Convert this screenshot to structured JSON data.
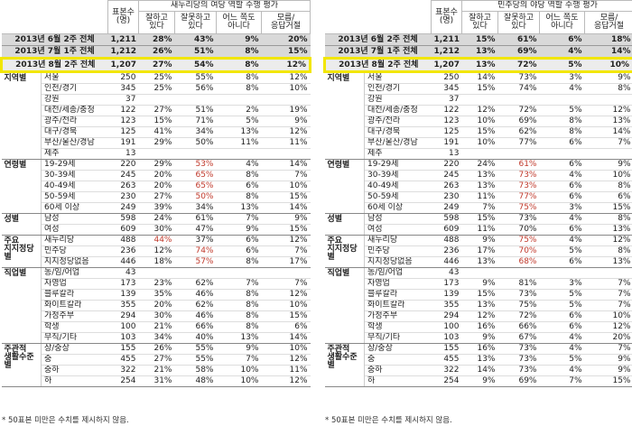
{
  "tables": [
    {
      "title": "새누리당의 여당 역할 수행 평가",
      "columns": [
        "표본수\n(명)",
        "잘하고\n있다",
        "잘못하고\n있다",
        "어느 쪽도\n아니다",
        "모름/\n응답거절"
      ],
      "summary": [
        {
          "label": "2013년 6월 2주 전체",
          "values": [
            "1,211",
            "28%",
            "43%",
            "9%",
            "20%"
          ]
        },
        {
          "label": "2013년 7월 1주 전체",
          "values": [
            "1,212",
            "26%",
            "51%",
            "8%",
            "15%"
          ]
        },
        {
          "label": "2013년 8월 2주 전체",
          "values": [
            "1,207",
            "27%",
            "54%",
            "8%",
            "12%"
          ],
          "highlight": true
        }
      ],
      "groups": [
        {
          "label": "지역별",
          "rows": [
            {
              "label": "서울",
              "values": [
                "250",
                "25%",
                "55%",
                "8%",
                "12%"
              ]
            },
            {
              "label": "인천/경기",
              "values": [
                "345",
                "25%",
                "56%",
                "8%",
                "10%"
              ]
            },
            {
              "label": "강원",
              "values": [
                "37"
              ]
            },
            {
              "label": "대전/세종/충청",
              "values": [
                "122",
                "27%",
                "51%",
                "2%",
                "19%"
              ]
            },
            {
              "label": "광주/전라",
              "values": [
                "123",
                "15%",
                "71%",
                "5%",
                "9%"
              ]
            },
            {
              "label": "대구/경북",
              "values": [
                "125",
                "41%",
                "34%",
                "13%",
                "12%"
              ]
            },
            {
              "label": "부산/울산/경남",
              "values": [
                "191",
                "29%",
                "50%",
                "11%",
                "11%"
              ]
            },
            {
              "label": "제주",
              "values": [
                "13"
              ]
            }
          ]
        },
        {
          "label": "연령별",
          "rows": [
            {
              "label": "19-29세",
              "values": [
                "220",
                "29%",
                "53%",
                "4%",
                "14%"
              ],
              "red": [
                2
              ]
            },
            {
              "label": "30-39세",
              "values": [
                "245",
                "20%",
                "65%",
                "8%",
                "7%"
              ],
              "red": [
                2
              ]
            },
            {
              "label": "40-49세",
              "values": [
                "263",
                "20%",
                "65%",
                "6%",
                "10%"
              ],
              "red": [
                2
              ]
            },
            {
              "label": "50-59세",
              "values": [
                "230",
                "27%",
                "50%",
                "8%",
                "15%"
              ],
              "red": [
                2
              ]
            },
            {
              "label": "60세 이상",
              "values": [
                "249",
                "39%",
                "34%",
                "13%",
                "14%"
              ]
            }
          ]
        },
        {
          "label": "성별",
          "rows": [
            {
              "label": "남성",
              "values": [
                "598",
                "24%",
                "61%",
                "7%",
                "9%"
              ]
            },
            {
              "label": "여성",
              "values": [
                "609",
                "30%",
                "47%",
                "9%",
                "15%"
              ]
            }
          ]
        },
        {
          "label": "주요\n지지정당별",
          "rows": [
            {
              "label": "새누리당",
              "values": [
                "488",
                "44%",
                "37%",
                "6%",
                "12%"
              ],
              "red": [
                1
              ]
            },
            {
              "label": "민주당",
              "values": [
                "236",
                "12%",
                "74%",
                "6%",
                "7%"
              ],
              "red": [
                2
              ]
            },
            {
              "label": "지지정당없음",
              "values": [
                "446",
                "18%",
                "57%",
                "8%",
                "17%"
              ],
              "red": [
                2
              ]
            }
          ]
        },
        {
          "label": "직업별",
          "rows": [
            {
              "label": "농/임/어업",
              "values": [
                "43"
              ]
            },
            {
              "label": "자영업",
              "values": [
                "173",
                "23%",
                "62%",
                "7%",
                "7%"
              ]
            },
            {
              "label": "블루칼라",
              "values": [
                "139",
                "35%",
                "46%",
                "8%",
                "12%"
              ]
            },
            {
              "label": "화이트칼라",
              "values": [
                "355",
                "20%",
                "62%",
                "8%",
                "10%"
              ]
            },
            {
              "label": "가정주부",
              "values": [
                "294",
                "30%",
                "46%",
                "8%",
                "15%"
              ]
            },
            {
              "label": "학생",
              "values": [
                "100",
                "21%",
                "66%",
                "8%",
                "6%"
              ]
            },
            {
              "label": "무직/기타",
              "values": [
                "103",
                "34%",
                "40%",
                "13%",
                "14%"
              ]
            }
          ]
        },
        {
          "label": "주관적\n생활수준별",
          "rows": [
            {
              "label": "상/중상",
              "values": [
                "155",
                "26%",
                "55%",
                "9%",
                "10%"
              ]
            },
            {
              "label": "중",
              "values": [
                "455",
                "27%",
                "55%",
                "7%",
                "12%"
              ]
            },
            {
              "label": "중하",
              "values": [
                "322",
                "21%",
                "58%",
                "10%",
                "11%"
              ]
            },
            {
              "label": "하",
              "values": [
                "254",
                "31%",
                "48%",
                "10%",
                "12%"
              ]
            }
          ]
        }
      ],
      "footnote": "* 50표본 미만은 수치를 제시하지 않음."
    },
    {
      "title": "민주당의 야당 역할 수행 평가",
      "columns": [
        "표본수\n(명)",
        "잘하고\n있다",
        "잘못하고\n있다",
        "어느 쪽도\n아니다",
        "모름/\n응답거절"
      ],
      "summary": [
        {
          "label": "2013년 6월 2주 전체",
          "values": [
            "1,211",
            "15%",
            "61%",
            "6%",
            "18%"
          ]
        },
        {
          "label": "2013년 7월 1주 전체",
          "values": [
            "1,212",
            "13%",
            "69%",
            "4%",
            "14%"
          ]
        },
        {
          "label": "2013년 8월 2주 전체",
          "values": [
            "1,207",
            "13%",
            "72%",
            "5%",
            "10%"
          ],
          "highlight": true
        }
      ],
      "groups": [
        {
          "label": "지역별",
          "rows": [
            {
              "label": "서울",
              "values": [
                "250",
                "14%",
                "73%",
                "3%",
                "9%"
              ]
            },
            {
              "label": "인천/경기",
              "values": [
                "345",
                "15%",
                "74%",
                "4%",
                "8%"
              ]
            },
            {
              "label": "강원",
              "values": [
                "37"
              ]
            },
            {
              "label": "대전/세종/충청",
              "values": [
                "122",
                "12%",
                "72%",
                "5%",
                "12%"
              ]
            },
            {
              "label": "광주/전라",
              "values": [
                "123",
                "10%",
                "69%",
                "8%",
                "13%"
              ]
            },
            {
              "label": "대구/경북",
              "values": [
                "125",
                "15%",
                "62%",
                "8%",
                "14%"
              ]
            },
            {
              "label": "부산/울산/경남",
              "values": [
                "191",
                "10%",
                "77%",
                "6%",
                "7%"
              ]
            },
            {
              "label": "제주",
              "values": [
                "13"
              ]
            }
          ]
        },
        {
          "label": "연령별",
          "rows": [
            {
              "label": "19-29세",
              "values": [
                "220",
                "24%",
                "61%",
                "6%",
                "9%"
              ],
              "red": [
                2
              ]
            },
            {
              "label": "30-39세",
              "values": [
                "245",
                "13%",
                "73%",
                "4%",
                "10%"
              ],
              "red": [
                2
              ]
            },
            {
              "label": "40-49세",
              "values": [
                "263",
                "13%",
                "73%",
                "6%",
                "8%"
              ],
              "red": [
                2
              ]
            },
            {
              "label": "50-59세",
              "values": [
                "230",
                "11%",
                "77%",
                "6%",
                "6%"
              ],
              "red": [
                2
              ]
            },
            {
              "label": "60세 이상",
              "values": [
                "249",
                "7%",
                "75%",
                "3%",
                "15%"
              ],
              "red": [
                2
              ]
            }
          ]
        },
        {
          "label": "성별",
          "rows": [
            {
              "label": "남성",
              "values": [
                "598",
                "15%",
                "73%",
                "4%",
                "8%"
              ]
            },
            {
              "label": "여성",
              "values": [
                "609",
                "11%",
                "70%",
                "6%",
                "13%"
              ]
            }
          ]
        },
        {
          "label": "주요\n지지정당별",
          "rows": [
            {
              "label": "새누리당",
              "values": [
                "488",
                "9%",
                "75%",
                "4%",
                "12%"
              ],
              "red": [
                2
              ]
            },
            {
              "label": "민주당",
              "values": [
                "236",
                "17%",
                "70%",
                "5%",
                "8%"
              ],
              "red": [
                2
              ]
            },
            {
              "label": "지지정당없음",
              "values": [
                "446",
                "13%",
                "68%",
                "6%",
                "13%"
              ],
              "red": [
                2
              ]
            }
          ]
        },
        {
          "label": "직업별",
          "rows": [
            {
              "label": "농/임/어업",
              "values": [
                "43"
              ]
            },
            {
              "label": "자영업",
              "values": [
                "173",
                "9%",
                "81%",
                "3%",
                "7%"
              ]
            },
            {
              "label": "블루칼라",
              "values": [
                "139",
                "15%",
                "73%",
                "5%",
                "7%"
              ]
            },
            {
              "label": "화이트칼라",
              "values": [
                "355",
                "13%",
                "75%",
                "5%",
                "7%"
              ]
            },
            {
              "label": "가정주부",
              "values": [
                "294",
                "12%",
                "72%",
                "6%",
                "10%"
              ]
            },
            {
              "label": "학생",
              "values": [
                "100",
                "16%",
                "66%",
                "6%",
                "12%"
              ]
            },
            {
              "label": "무직/기타",
              "values": [
                "103",
                "9%",
                "67%",
                "4%",
                "20%"
              ]
            }
          ]
        },
        {
          "label": "주관적\n생활수준별",
          "rows": [
            {
              "label": "상/중상",
              "values": [
                "155",
                "16%",
                "73%",
                "4%",
                "7%"
              ]
            },
            {
              "label": "중",
              "values": [
                "455",
                "13%",
                "73%",
                "5%",
                "9%"
              ]
            },
            {
              "label": "중하",
              "values": [
                "322",
                "14%",
                "73%",
                "4%",
                "9%"
              ]
            },
            {
              "label": "하",
              "values": [
                "254",
                "9%",
                "69%",
                "7%",
                "15%"
              ]
            }
          ]
        }
      ],
      "footnote": "* 50표본 미만은 수치를 제시하지 않음."
    }
  ]
}
